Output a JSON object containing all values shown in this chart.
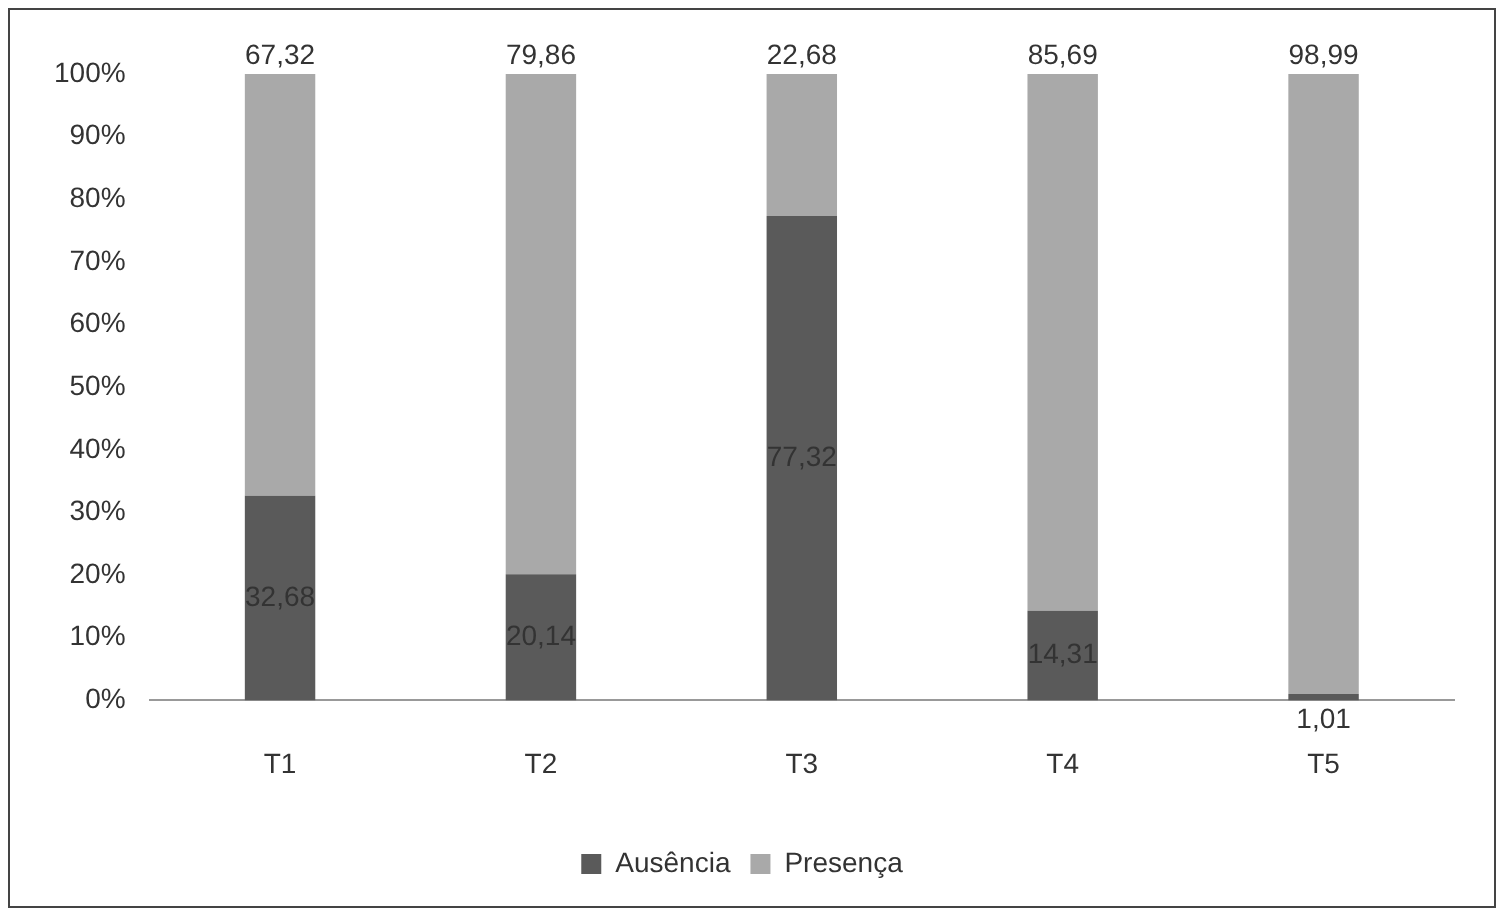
{
  "chart_data": {
    "type": "bar",
    "stacked": true,
    "categories": [
      "T1",
      "T2",
      "T3",
      "T4",
      "T5"
    ],
    "series": [
      {
        "name": "Ausência",
        "color": "#5a5a5a",
        "values": [
          32.68,
          20.14,
          77.32,
          14.31,
          1.01
        ],
        "value_labels": [
          "32,68",
          "20,14",
          "77,32",
          "14,31",
          "1,01"
        ]
      },
      {
        "name": "Presença",
        "color": "#a9a9a9",
        "values": [
          67.32,
          79.86,
          22.68,
          85.69,
          98.99
        ],
        "value_labels": [
          "67,32",
          "79,86",
          "22,68",
          "85,69",
          "98,99"
        ]
      }
    ],
    "ylim": [
      0,
      100
    ],
    "yticks": [
      {
        "value": 0,
        "label": "0%"
      },
      {
        "value": 10,
        "label": "10%"
      },
      {
        "value": 20,
        "label": "20%"
      },
      {
        "value": 30,
        "label": "30%"
      },
      {
        "value": 40,
        "label": "40%"
      },
      {
        "value": 50,
        "label": "50%"
      },
      {
        "value": 60,
        "label": "60%"
      },
      {
        "value": 70,
        "label": "70%"
      },
      {
        "value": 80,
        "label": "80%"
      },
      {
        "value": 90,
        "label": "90%"
      },
      {
        "value": 100,
        "label": "100%"
      }
    ],
    "grid": false,
    "legend": "bottom"
  }
}
